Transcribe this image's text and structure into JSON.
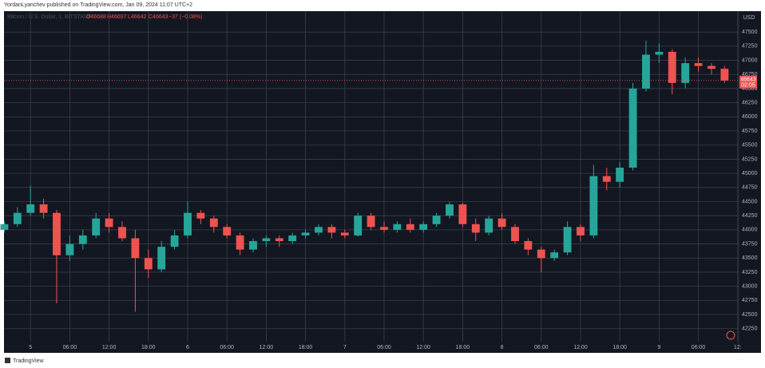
{
  "header": {
    "attribution": "YordanLyanchev published on TradingView.com, Jan 09, 2024 11:07 UTC+2",
    "footer": "TradingView"
  },
  "chart_data": {
    "type": "candlestick",
    "symbol": "Bitcoin / U.S. Dollar, 1, BITSTAMP",
    "ohlc_legend": [
      "O46688",
      "H46697",
      "L46642",
      "C46643",
      "−37 (−0.08%)"
    ],
    "currency": "USD",
    "last_price": 46643,
    "countdown": "02:05",
    "up_color": "#26a69a",
    "down_color": "#ef5350",
    "grid": true,
    "x": [
      -4,
      -2,
      0,
      2,
      4,
      6,
      8,
      10,
      12,
      14,
      16,
      18,
      20,
      22,
      24,
      26,
      28,
      30,
      32,
      34,
      36,
      38,
      40,
      42,
      44,
      46,
      48,
      50,
      52,
      54,
      56,
      58,
      60,
      62,
      64,
      66,
      68,
      70,
      72,
      74,
      76,
      78,
      80,
      82,
      84,
      86,
      88,
      90,
      92,
      94,
      96,
      98,
      100,
      102,
      104,
      106
    ],
    "open": [
      44000,
      44100,
      44300,
      44450,
      44300,
      43550,
      43750,
      43900,
      44200,
      44050,
      43850,
      43500,
      43300,
      43700,
      43900,
      44300,
      44200,
      44050,
      43900,
      43650,
      43800,
      43850,
      43800,
      43900,
      43950,
      44050,
      43950,
      43900,
      44250,
      44050,
      44000,
      44100,
      44000,
      44100,
      44250,
      44450,
      44100,
      43950,
      44200,
      44050,
      43800,
      43650,
      43500,
      43600,
      44050,
      43900,
      44950,
      44850,
      45100,
      46500,
      47100,
      47150,
      46600,
      46950,
      46900,
      46850
    ],
    "high": [
      44150,
      44400,
      44780,
      44550,
      44350,
      43900,
      44000,
      44300,
      44300,
      44150,
      44000,
      43650,
      43800,
      44000,
      44500,
      44350,
      44250,
      44100,
      43950,
      43850,
      43900,
      43900,
      43950,
      44000,
      44100,
      44100,
      44000,
      44300,
      44300,
      44150,
      44150,
      44200,
      44150,
      44300,
      44500,
      44480,
      44200,
      44250,
      44300,
      44100,
      43850,
      43700,
      43650,
      44150,
      44100,
      45150,
      45100,
      45200,
      46600,
      47350,
      47300,
      47200,
      47050,
      47050,
      46950,
      46900
    ],
    "low": [
      43950,
      44050,
      44250,
      44200,
      42700,
      43450,
      43650,
      43850,
      43950,
      43800,
      42550,
      43150,
      43250,
      43650,
      43850,
      44100,
      43950,
      43850,
      43550,
      43600,
      43700,
      43700,
      43750,
      43850,
      43900,
      43850,
      43850,
      43880,
      44000,
      43950,
      43950,
      43950,
      43950,
      44050,
      44200,
      44050,
      43800,
      43900,
      44000,
      43750,
      43550,
      43250,
      43450,
      43550,
      43800,
      43850,
      44700,
      44750,
      45050,
      46450,
      46950,
      46400,
      46500,
      46800,
      46750,
      46600
    ],
    "close": [
      44100,
      44300,
      44450,
      44300,
      43550,
      43750,
      43900,
      44200,
      44050,
      43850,
      43500,
      43300,
      43700,
      43900,
      44300,
      44200,
      44050,
      43900,
      43650,
      43800,
      43850,
      43800,
      43900,
      43950,
      44050,
      43950,
      43900,
      44250,
      44050,
      44000,
      44100,
      44000,
      44100,
      44250,
      44450,
      44100,
      43950,
      44200,
      44050,
      43800,
      43650,
      43500,
      43600,
      44050,
      43900,
      44950,
      44850,
      45100,
      46500,
      47100,
      47150,
      46600,
      46950,
      46900,
      46850,
      46643
    ],
    "xlim": [
      -4.05,
      108.15
    ],
    "xticks": [
      {
        "value": 0,
        "label": "5"
      },
      {
        "value": 6,
        "label": "06:00"
      },
      {
        "value": 12,
        "label": "12:00"
      },
      {
        "value": 18,
        "label": "18:00"
      },
      {
        "value": 24,
        "label": "6"
      },
      {
        "value": 30,
        "label": "06:00"
      },
      {
        "value": 36,
        "label": "12:00"
      },
      {
        "value": 42,
        "label": "18:00"
      },
      {
        "value": 48,
        "label": "7"
      },
      {
        "value": 54,
        "label": "06:00"
      },
      {
        "value": 60,
        "label": "12:00"
      },
      {
        "value": 66,
        "label": "18:00"
      },
      {
        "value": 72,
        "label": "8"
      },
      {
        "value": 78,
        "label": "06:00"
      },
      {
        "value": 84,
        "label": "12:00"
      },
      {
        "value": 90,
        "label": "18:00"
      },
      {
        "value": 96,
        "label": "9"
      },
      {
        "value": 102,
        "label": "06:00"
      },
      {
        "value": 108,
        "label": "12:"
      }
    ],
    "ylim": [
      42020,
      47870
    ],
    "yticks": [
      42250,
      42500,
      42750,
      43000,
      43250,
      43500,
      43750,
      44000,
      44250,
      44500,
      44750,
      45000,
      45250,
      45500,
      45750,
      46000,
      46250,
      46500,
      46750,
      47000,
      47250,
      47500
    ]
  }
}
